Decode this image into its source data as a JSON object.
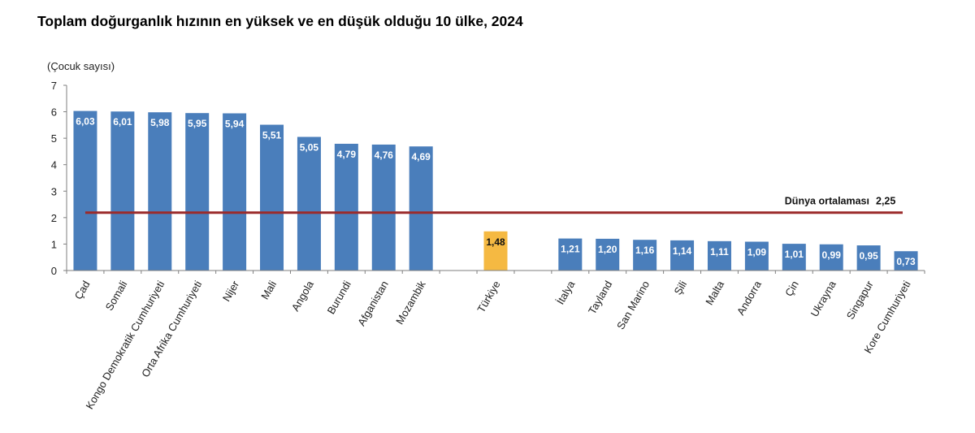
{
  "title": "Toplam doğurganlık hızının en yüksek ve en düşük olduğu 10 ülke, 2024",
  "chart_data": {
    "type": "bar",
    "title": "Toplam doğurganlık hızının en yüksek ve en düşük olduğu 10 ülke, 2024",
    "ylabel": "(Çocuk sayısı)",
    "xlabel": "",
    "ylim": [
      0,
      7
    ],
    "yticks": [
      "0",
      "1",
      "2",
      "3",
      "4",
      "5",
      "6",
      "7"
    ],
    "categories": [
      "Çad",
      "Somali",
      "Kongo Demokratik Cumhuriyeti",
      "Orta Afrika Cumhuriyeti",
      "Nijer",
      "Mali",
      "Angola",
      "Burundi",
      "Afganistan",
      "Mozambik",
      "",
      "Türkiye",
      "",
      "İtalya",
      "Tayland",
      "San Marino",
      "Şili",
      "Malta",
      "Andorra",
      "Çin",
      "Ukrayna",
      "Singapur",
      "Kore Cumhuriyeti"
    ],
    "values": [
      6.03,
      6.01,
      5.98,
      5.95,
      5.94,
      5.51,
      5.05,
      4.79,
      4.76,
      4.69,
      null,
      1.48,
      null,
      1.21,
      1.2,
      1.16,
      1.14,
      1.11,
      1.09,
      1.01,
      0.99,
      0.95,
      0.73
    ],
    "value_labels": [
      "6,03",
      "6,01",
      "5,98",
      "5,95",
      "5,94",
      "5,51",
      "5,05",
      "4,79",
      "4,76",
      "4,69",
      "",
      "1,48",
      "",
      "1,21",
      "1,20",
      "1,16",
      "1,14",
      "1,11",
      "1,09",
      "1,01",
      "0,99",
      "0,95",
      "0,73"
    ],
    "highlight": "Türkiye",
    "colors": {
      "bar": "#4A7EBB",
      "highlight": "#F5B942",
      "average_line": "#9B2A2A"
    },
    "reference_line": {
      "label": "Dünya ortalaması",
      "value": 2.25,
      "value_label": "2,25"
    }
  }
}
